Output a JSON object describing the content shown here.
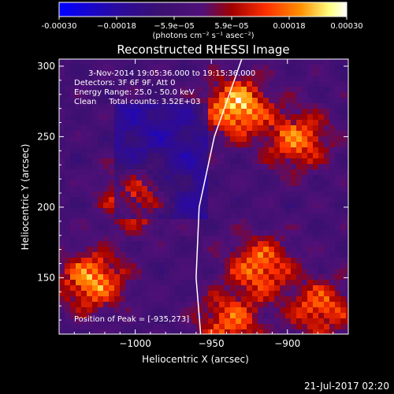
{
  "chart_data": {
    "type": "heatmap",
    "title": "Reconstructed RHESSI Image",
    "xlabel": "Heliocentric X (arcsec)",
    "ylabel": "Heliocentric Y (arcsec)",
    "xlim": [
      -1050,
      -860
    ],
    "ylim": [
      110,
      305
    ],
    "x_ticks": [
      -1000,
      -950,
      -900
    ],
    "x_tick_labels": [
      "−1000",
      "−950",
      "−900"
    ],
    "y_ticks": [
      150,
      200,
      250,
      300
    ],
    "y_tick_labels": [
      "150",
      "200",
      "250",
      "300"
    ],
    "colorbar": {
      "range": [
        -0.0003,
        0.0003
      ],
      "tick_labels": [
        "-0.00030",
        "−0.00018",
        "−5.9e−05",
        "5.9e−05",
        "0.00018",
        "0.00030"
      ],
      "unit_label": "(photons cm⁻² s⁻¹ asec⁻²)",
      "colors": [
        "#0000ff",
        "#2a0aa0",
        "#3a1070",
        "#501078",
        "#a00000",
        "#ff3000",
        "#ff9000",
        "#ffff80",
        "#ffffff"
      ]
    },
    "annotations": {
      "time": "3-Nov-2014 19:05:36.000 to 19:15:36.000",
      "detectors": "Detectors: 3F 6F 9F, Att 0",
      "energy": "Energy Range: 25.0 - 50.0 keV",
      "clean": "Clean     Total counts: 3.52E+03",
      "peak": "Position of Peak = [-935,273]"
    },
    "hotspots": [
      {
        "x": -1030,
        "y": 150,
        "level": 0.9
      },
      {
        "x": -1000,
        "y": 210,
        "level": 0.85
      },
      {
        "x": -935,
        "y": 273,
        "level": 1.0
      },
      {
        "x": -895,
        "y": 250,
        "level": 0.75
      },
      {
        "x": -920,
        "y": 160,
        "level": 0.8
      },
      {
        "x": -880,
        "y": 130,
        "level": 0.7
      },
      {
        "x": -940,
        "y": 120,
        "level": 0.7
      }
    ],
    "limb_curve": [
      [
        -957,
        110
      ],
      [
        -960,
        150
      ],
      [
        -958,
        200
      ],
      [
        -948,
        250
      ],
      [
        -930,
        305
      ]
    ]
  },
  "footer": {
    "timestamp": "21-Jul-2017 02:20"
  }
}
